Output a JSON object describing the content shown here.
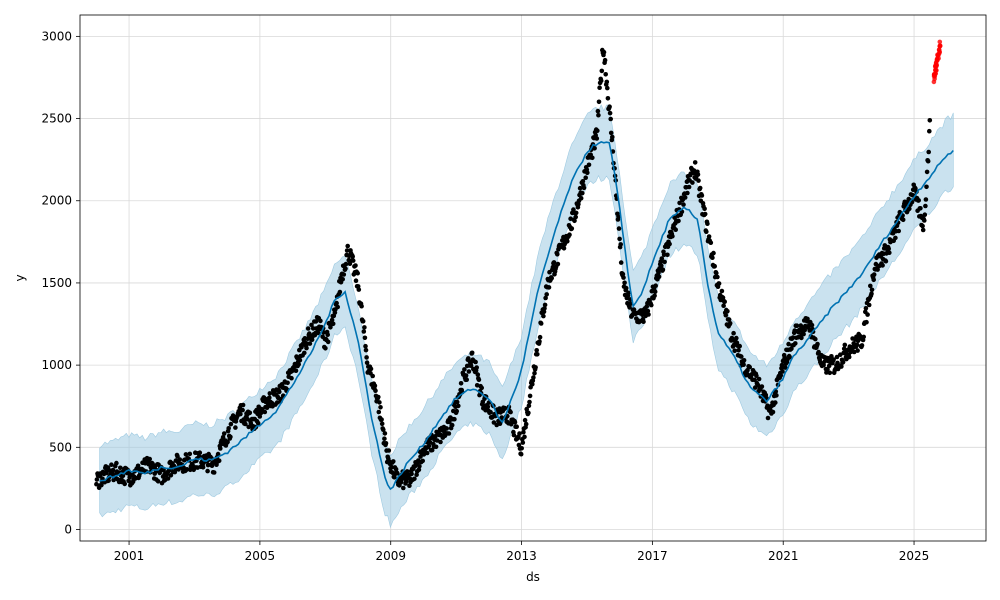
{
  "chart_data": {
    "type": "line",
    "title": "",
    "xlabel": "ds",
    "ylabel": "y",
    "xlim": [
      1999.5,
      2027.2
    ],
    "ylim": [
      -70,
      3130
    ],
    "x_ticks": [
      2001,
      2005,
      2009,
      2013,
      2017,
      2021,
      2025
    ],
    "x_tick_labels": [
      "2001",
      "2005",
      "2009",
      "2013",
      "2017",
      "2021",
      "2025"
    ],
    "y_ticks": [
      0,
      500,
      1000,
      1500,
      2000,
      2500,
      3000
    ],
    "y_tick_labels": [
      "0",
      "500",
      "1000",
      "1500",
      "2000",
      "2500",
      "3000"
    ],
    "grid": true,
    "colors": {
      "forecast_line": "#0072B2",
      "uncertainty_band": "#9ecae1",
      "observed_points": "#000000",
      "recent_points": "#ff0000"
    },
    "series": [
      {
        "role": "forecast",
        "x": [
          2000.1,
          2000.5,
          2001.0,
          2001.5,
          2002.0,
          2002.5,
          2003.0,
          2003.5,
          2004.0,
          2004.5,
          2005.0,
          2005.5,
          2006.0,
          2006.5,
          2007.0,
          2007.3,
          2007.6,
          2008.0,
          2008.4,
          2008.8,
          2009.0,
          2009.5,
          2010.0,
          2010.5,
          2011.0,
          2011.5,
          2012.0,
          2012.4,
          2012.8,
          2013.0,
          2013.5,
          2014.0,
          2014.5,
          2015.0,
          2015.3,
          2015.7,
          2016.0,
          2016.4,
          2016.7,
          2017.0,
          2017.5,
          2018.0,
          2018.4,
          2018.7,
          2019.0,
          2019.5,
          2020.0,
          2020.5,
          2021.0,
          2021.3,
          2021.6,
          2022.0,
          2022.5,
          2023.0,
          2023.5,
          2024.0,
          2024.5,
          2025.0,
          2025.5,
          2026.0,
          2026.2
        ],
        "y": [
          300,
          320,
          360,
          340,
          380,
          380,
          430,
          420,
          470,
          550,
          640,
          720,
          880,
          1050,
          1250,
          1400,
          1450,
          1150,
          700,
          330,
          240,
          400,
          520,
          670,
          800,
          860,
          800,
          640,
          850,
          970,
          1450,
          1800,
          2100,
          2300,
          2350,
          2350,
          1950,
          1350,
          1450,
          1620,
          1880,
          1960,
          1880,
          1480,
          1200,
          1050,
          860,
          780,
          920,
          1050,
          1120,
          1220,
          1350,
          1460,
          1580,
          1740,
          1880,
          2030,
          2150,
          2280,
          2300
        ]
      },
      {
        "role": "observed",
        "x": [
          2000.0,
          2000.3,
          2000.6,
          2001.0,
          2001.3,
          2001.6,
          2002.0,
          2002.4,
          2002.8,
          2003.2,
          2003.6,
          2004.0,
          2004.4,
          2004.8,
          2005.2,
          2005.6,
          2006.0,
          2006.4,
          2006.8,
          2007.0,
          2007.3,
          2007.5,
          2007.7,
          2008.0,
          2008.3,
          2008.6,
          2008.9,
          2009.2,
          2009.6,
          2010.0,
          2010.4,
          2010.8,
          2011.2,
          2011.5,
          2011.8,
          2012.2,
          2012.6,
          2013.0,
          2013.4,
          2013.8,
          2014.2,
          2014.6,
          2015.0,
          2015.3,
          2015.5,
          2015.8,
          2016.1,
          2016.4,
          2016.8,
          2017.2,
          2017.6,
          2018.0,
          2018.3,
          2018.6,
          2019.0,
          2019.4,
          2019.8,
          2020.2,
          2020.6,
          2021.0,
          2021.4,
          2021.8,
          2022.2,
          2022.6,
          2023.0,
          2023.4,
          2023.8,
          2024.2,
          2024.6,
          2025.0,
          2025.3,
          2025.5
        ],
        "y": [
          300,
          330,
          350,
          320,
          350,
          390,
          330,
          400,
          410,
          420,
          400,
          580,
          720,
          650,
          780,
          820,
          950,
          1150,
          1250,
          1150,
          1300,
          1550,
          1700,
          1500,
          1000,
          800,
          450,
          300,
          300,
          480,
          550,
          620,
          900,
          1050,
          800,
          680,
          700,
          500,
          1000,
          1500,
          1700,
          1900,
          2200,
          2400,
          2950,
          2300,
          1500,
          1300,
          1300,
          1550,
          1800,
          2050,
          2200,
          1900,
          1500,
          1200,
          1000,
          900,
          700,
          1000,
          1200,
          1250,
          1000,
          1000,
          1100,
          1150,
          1600,
          1700,
          1900,
          2050,
          1850,
          2500
        ]
      },
      {
        "role": "recent",
        "x": [
          2025.6,
          2025.65,
          2025.7,
          2025.75,
          2025.8
        ],
        "y": [
          2750,
          2800,
          2850,
          2900,
          2960
        ]
      }
    ],
    "uncertainty_band": {
      "lower_offset": 215,
      "upper_offset": 215
    }
  }
}
